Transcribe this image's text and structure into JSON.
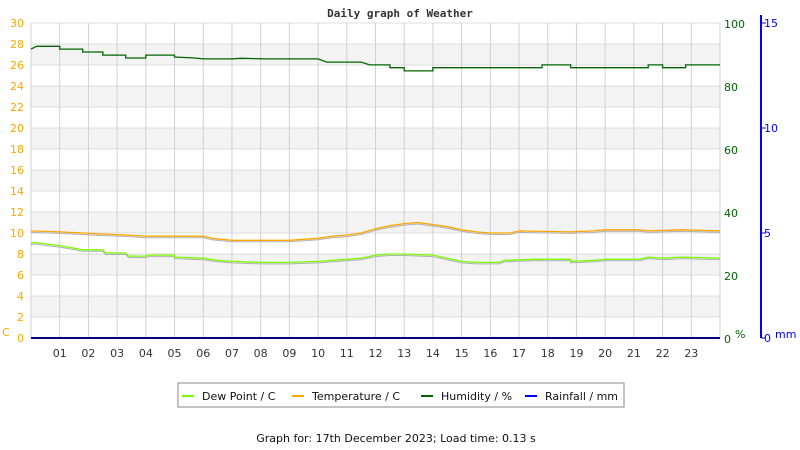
{
  "chart_data": {
    "type": "line",
    "title": "Daily graph of Weather",
    "footer": "Graph for: 17th December 2023; Load time: 0.13 s",
    "x_ticks": [
      "01",
      "02",
      "03",
      "04",
      "05",
      "06",
      "07",
      "08",
      "09",
      "10",
      "11",
      "12",
      "13",
      "14",
      "15",
      "16",
      "17",
      "18",
      "19",
      "20",
      "21",
      "22",
      "23"
    ],
    "xlim": [
      0,
      24
    ],
    "axes": {
      "left": {
        "label": "C",
        "range": [
          0,
          30
        ],
        "step": 2,
        "color": "#ffa500"
      },
      "right": {
        "label": "%",
        "range": [
          0,
          100
        ],
        "step": 20,
        "color": "#006400"
      },
      "rain": {
        "label": "mm",
        "range": [
          0,
          15
        ],
        "step": 5,
        "color": "#0000ff"
      }
    },
    "grid": true,
    "legend_position": "bottom-center",
    "series": [
      {
        "name": "Dew Point / C",
        "axis": "left",
        "color": "#7cfc00",
        "points": [
          [
            0,
            9.0
          ],
          [
            0.1,
            9.1
          ],
          [
            1,
            8.8
          ],
          [
            1.8,
            8.4
          ],
          [
            2.5,
            8.4
          ],
          [
            2.6,
            8.1
          ],
          [
            3.3,
            8.1
          ],
          [
            3.4,
            7.8
          ],
          [
            4,
            7.8
          ],
          [
            4.1,
            7.9
          ],
          [
            5,
            7.9
          ],
          [
            5,
            7.7
          ],
          [
            6,
            7.6
          ],
          [
            6.5,
            7.4
          ],
          [
            7,
            7.3
          ],
          [
            8,
            7.2
          ],
          [
            9,
            7.2
          ],
          [
            10,
            7.3
          ],
          [
            11,
            7.5
          ],
          [
            11.5,
            7.6
          ],
          [
            12,
            7.9
          ],
          [
            12.5,
            8.0
          ],
          [
            13,
            8.0
          ],
          [
            14,
            7.9
          ],
          [
            14.5,
            7.6
          ],
          [
            15,
            7.3
          ],
          [
            15.5,
            7.2
          ],
          [
            16.3,
            7.2
          ],
          [
            16.5,
            7.4
          ],
          [
            17.5,
            7.5
          ],
          [
            18.8,
            7.5
          ],
          [
            18.8,
            7.3
          ],
          [
            19.6,
            7.4
          ],
          [
            20,
            7.5
          ],
          [
            21.2,
            7.5
          ],
          [
            21.5,
            7.7
          ],
          [
            22,
            7.6
          ],
          [
            22.7,
            7.7
          ],
          [
            24,
            7.6
          ]
        ]
      },
      {
        "name": "Temperature / C",
        "axis": "left",
        "color": "#ffa500",
        "points": [
          [
            0,
            10.2
          ],
          [
            1,
            10.1
          ],
          [
            1.8,
            10.0
          ],
          [
            2.5,
            9.9
          ],
          [
            3.4,
            9.8
          ],
          [
            4,
            9.7
          ],
          [
            6,
            9.7
          ],
          [
            6.3,
            9.5
          ],
          [
            7,
            9.3
          ],
          [
            8,
            9.3
          ],
          [
            9,
            9.3
          ],
          [
            9.5,
            9.4
          ],
          [
            10,
            9.5
          ],
          [
            10.5,
            9.7
          ],
          [
            11,
            9.8
          ],
          [
            11.5,
            10.0
          ],
          [
            12,
            10.4
          ],
          [
            12.5,
            10.7
          ],
          [
            13,
            10.9
          ],
          [
            13.5,
            11.0
          ],
          [
            14,
            10.8
          ],
          [
            14.5,
            10.6
          ],
          [
            15,
            10.3
          ],
          [
            15.5,
            10.1
          ],
          [
            16,
            10.0
          ],
          [
            16.7,
            10.0
          ],
          [
            17,
            10.2
          ],
          [
            18.8,
            10.1
          ],
          [
            19.6,
            10.2
          ],
          [
            20,
            10.3
          ],
          [
            21.2,
            10.3
          ],
          [
            21.5,
            10.2
          ],
          [
            22.7,
            10.3
          ],
          [
            24,
            10.2
          ]
        ]
      },
      {
        "name": "Humidity / %",
        "axis": "right",
        "color": "#006400",
        "points": [
          [
            0,
            91.7
          ],
          [
            0.2,
            92.6
          ],
          [
            1,
            92.6
          ],
          [
            1,
            91.7
          ],
          [
            1.8,
            91.7
          ],
          [
            1.8,
            90.8
          ],
          [
            2.5,
            90.8
          ],
          [
            2.5,
            89.8
          ],
          [
            3.3,
            89.8
          ],
          [
            3.3,
            88.9
          ],
          [
            4,
            88.9
          ],
          [
            4,
            89.8
          ],
          [
            5,
            89.8
          ],
          [
            5,
            89.2
          ],
          [
            5.7,
            88.9
          ],
          [
            6,
            88.6
          ],
          [
            7,
            88.6
          ],
          [
            7.3,
            88.8
          ],
          [
            8.2,
            88.6
          ],
          [
            9,
            88.6
          ],
          [
            10,
            88.6
          ],
          [
            10.3,
            87.6
          ],
          [
            11.5,
            87.6
          ],
          [
            11.8,
            86.7
          ],
          [
            12.5,
            86.7
          ],
          [
            12.5,
            85.8
          ],
          [
            13,
            85.8
          ],
          [
            13,
            84.8
          ],
          [
            14,
            84.8
          ],
          [
            14,
            85.8
          ],
          [
            15,
            85.8
          ],
          [
            17.8,
            85.8
          ],
          [
            17.8,
            86.7
          ],
          [
            18.8,
            86.7
          ],
          [
            18.8,
            85.8
          ],
          [
            21.5,
            85.8
          ],
          [
            21.5,
            86.7
          ],
          [
            22,
            86.7
          ],
          [
            22,
            85.8
          ],
          [
            22.8,
            85.8
          ],
          [
            22.8,
            86.7
          ],
          [
            24,
            86.7
          ]
        ]
      },
      {
        "name": "Rainfall / mm",
        "axis": "rain",
        "color": "#0000ff",
        "points": [
          [
            0,
            0
          ],
          [
            24,
            0
          ]
        ]
      }
    ]
  }
}
